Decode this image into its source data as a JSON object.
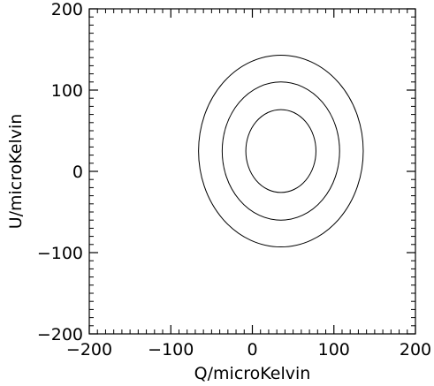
{
  "chart_data": {
    "type": "contour",
    "title": "",
    "xlabel": "Q/microKelvin",
    "ylabel": "U/microKelvin",
    "xlim": [
      -200,
      200
    ],
    "ylim": [
      -200,
      200
    ],
    "x_ticks": [
      -200,
      -100,
      0,
      100,
      200
    ],
    "y_ticks": [
      -200,
      -100,
      0,
      100,
      200
    ],
    "minor_tick_step": 10,
    "grid": false,
    "legend": "none",
    "line_color": "#000000",
    "series": [
      {
        "center": [
          35,
          25
        ],
        "semi_axes": [
          43,
          51
        ]
      },
      {
        "center": [
          35,
          25
        ],
        "semi_axes": [
          72,
          85
        ]
      },
      {
        "center": [
          35,
          25
        ],
        "semi_axes": [
          101,
          118
        ]
      }
    ]
  }
}
